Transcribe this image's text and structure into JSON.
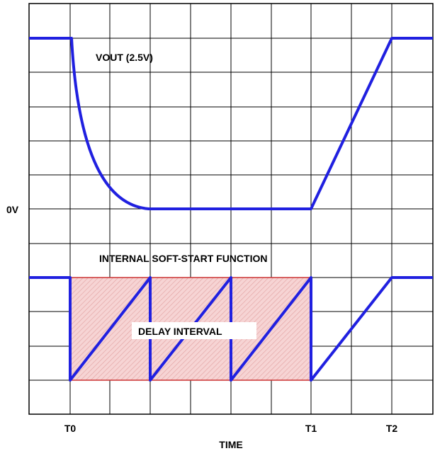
{
  "labels": {
    "vout": "VOUT (2.5V)",
    "zero_v": "0V",
    "soft_start": "INTERNAL SOFT-START FUNCTION",
    "delay_interval": "DELAY INTERVAL",
    "time_axis": "TIME",
    "markers": {
      "t0": "T0",
      "t1": "T1",
      "t2": "T2"
    }
  },
  "colors": {
    "waveform": "#2020e0",
    "delay_fill": "#f3c6c6",
    "delay_hatch": "#e39a9a",
    "delay_edge": "#cc3333",
    "grid": "#000000"
  }
}
